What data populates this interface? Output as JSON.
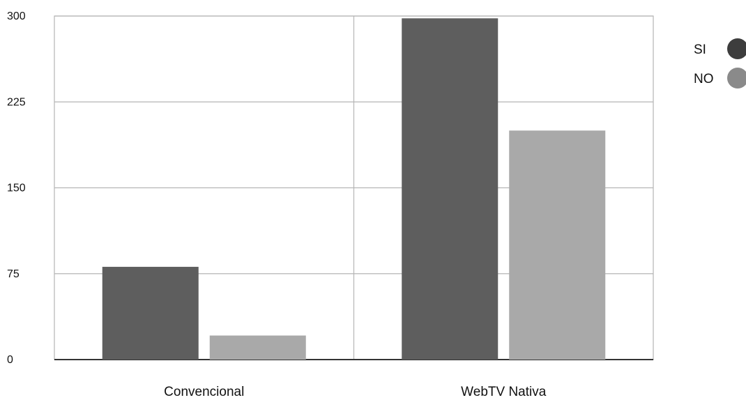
{
  "chart_data": {
    "type": "bar",
    "categories": [
      "Convencional",
      "WebTV Nativa"
    ],
    "series": [
      {
        "name": "SI",
        "values": [
          81,
          298
        ],
        "color": "#5e5e5e"
      },
      {
        "name": "NO",
        "values": [
          21,
          200
        ],
        "color": "#a9a9a9"
      }
    ],
    "y_ticks": [
      "0",
      "75",
      "150",
      "225",
      "300"
    ],
    "ylim": [
      0,
      300
    ],
    "grid": true,
    "legend_position": "top-right",
    "legend_marker_colors": [
      "#3d3d3d",
      "#8a8a8a"
    ]
  }
}
